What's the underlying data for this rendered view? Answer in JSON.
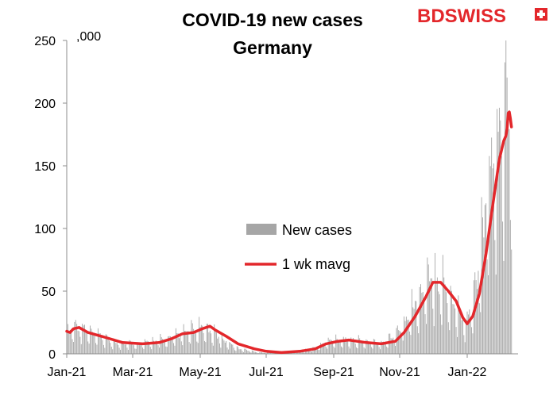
{
  "brand": {
    "logo_text": "BDSWISS",
    "color": "#e3272b"
  },
  "chart_data": {
    "type": "bar",
    "title": "COVID-19 new cases",
    "subtitle": "Germany",
    "ylabel": ",000",
    "xlabel": "",
    "ylim": [
      0,
      250
    ],
    "yticks": [
      0,
      50,
      100,
      150,
      200,
      250
    ],
    "xticks": [
      "Jan-21",
      "Mar-21",
      "May-21",
      "Jul-21",
      "Sep-21",
      "Nov-21",
      "Jan-22"
    ],
    "grid": false,
    "legend": {
      "position": "center-right"
    },
    "series": [
      {
        "name": "New cases",
        "kind": "bar",
        "color": "#a6a6a6",
        "anchors": [
          [
            "2021-01-01",
            17
          ],
          [
            "2021-01-10",
            22
          ],
          [
            "2021-01-25",
            15
          ],
          [
            "2021-02-15",
            8
          ],
          [
            "2021-03-10",
            8
          ],
          [
            "2021-04-05",
            12
          ],
          [
            "2021-04-20",
            17
          ],
          [
            "2021-05-05",
            20
          ],
          [
            "2021-05-20",
            12
          ],
          [
            "2021-06-05",
            4
          ],
          [
            "2021-06-25",
            1
          ],
          [
            "2021-07-15",
            1
          ],
          [
            "2021-08-10",
            3
          ],
          [
            "2021-09-01",
            11
          ],
          [
            "2021-09-20",
            10
          ],
          [
            "2021-10-15",
            8
          ],
          [
            "2021-11-01",
            18
          ],
          [
            "2021-11-15",
            38
          ],
          [
            "2021-11-30",
            57
          ],
          [
            "2021-12-08",
            56
          ],
          [
            "2021-12-20",
            38
          ],
          [
            "2021-12-31",
            22
          ],
          [
            "2022-01-10",
            55
          ],
          [
            "2022-01-20",
            125
          ],
          [
            "2022-01-31",
            170
          ],
          [
            "2022-02-05",
            190
          ],
          [
            "2022-02-09",
            180
          ]
        ]
      },
      {
        "name": "1 wk mavg",
        "kind": "line",
        "color": "#e3272b",
        "points": [
          [
            "2021-01-01",
            18
          ],
          [
            "2021-01-04",
            17
          ],
          [
            "2021-01-07",
            20
          ],
          [
            "2021-01-12",
            21
          ],
          [
            "2021-01-20",
            17
          ],
          [
            "2021-02-05",
            13
          ],
          [
            "2021-02-20",
            9
          ],
          [
            "2021-03-10",
            8
          ],
          [
            "2021-03-25",
            9
          ],
          [
            "2021-04-05",
            12
          ],
          [
            "2021-04-15",
            16
          ],
          [
            "2021-04-25",
            17
          ],
          [
            "2021-05-03",
            20
          ],
          [
            "2021-05-10",
            22
          ],
          [
            "2021-05-15",
            19
          ],
          [
            "2021-05-25",
            14
          ],
          [
            "2021-06-05",
            8
          ],
          [
            "2021-06-20",
            4
          ],
          [
            "2021-07-01",
            2
          ],
          [
            "2021-07-15",
            1
          ],
          [
            "2021-08-01",
            2
          ],
          [
            "2021-08-15",
            4
          ],
          [
            "2021-08-25",
            8
          ],
          [
            "2021-09-05",
            10
          ],
          [
            "2021-09-15",
            11
          ],
          [
            "2021-10-01",
            9
          ],
          [
            "2021-10-15",
            8
          ],
          [
            "2021-10-28",
            10
          ],
          [
            "2021-11-05",
            17
          ],
          [
            "2021-11-15",
            30
          ],
          [
            "2021-11-25",
            46
          ],
          [
            "2021-12-01",
            57
          ],
          [
            "2021-12-08",
            57
          ],
          [
            "2021-12-15",
            50
          ],
          [
            "2021-12-22",
            42
          ],
          [
            "2021-12-28",
            29
          ],
          [
            "2022-01-01",
            24
          ],
          [
            "2022-01-06",
            30
          ],
          [
            "2022-01-12",
            48
          ],
          [
            "2022-01-18",
            80
          ],
          [
            "2022-01-24",
            118
          ],
          [
            "2022-01-30",
            155
          ],
          [
            "2022-02-03",
            170
          ],
          [
            "2022-02-05",
            174
          ],
          [
            "2022-02-06",
            180
          ],
          [
            "2022-02-07",
            192
          ],
          [
            "2022-02-08",
            193
          ],
          [
            "2022-02-09",
            188
          ],
          [
            "2022-02-10",
            181
          ]
        ]
      }
    ]
  }
}
